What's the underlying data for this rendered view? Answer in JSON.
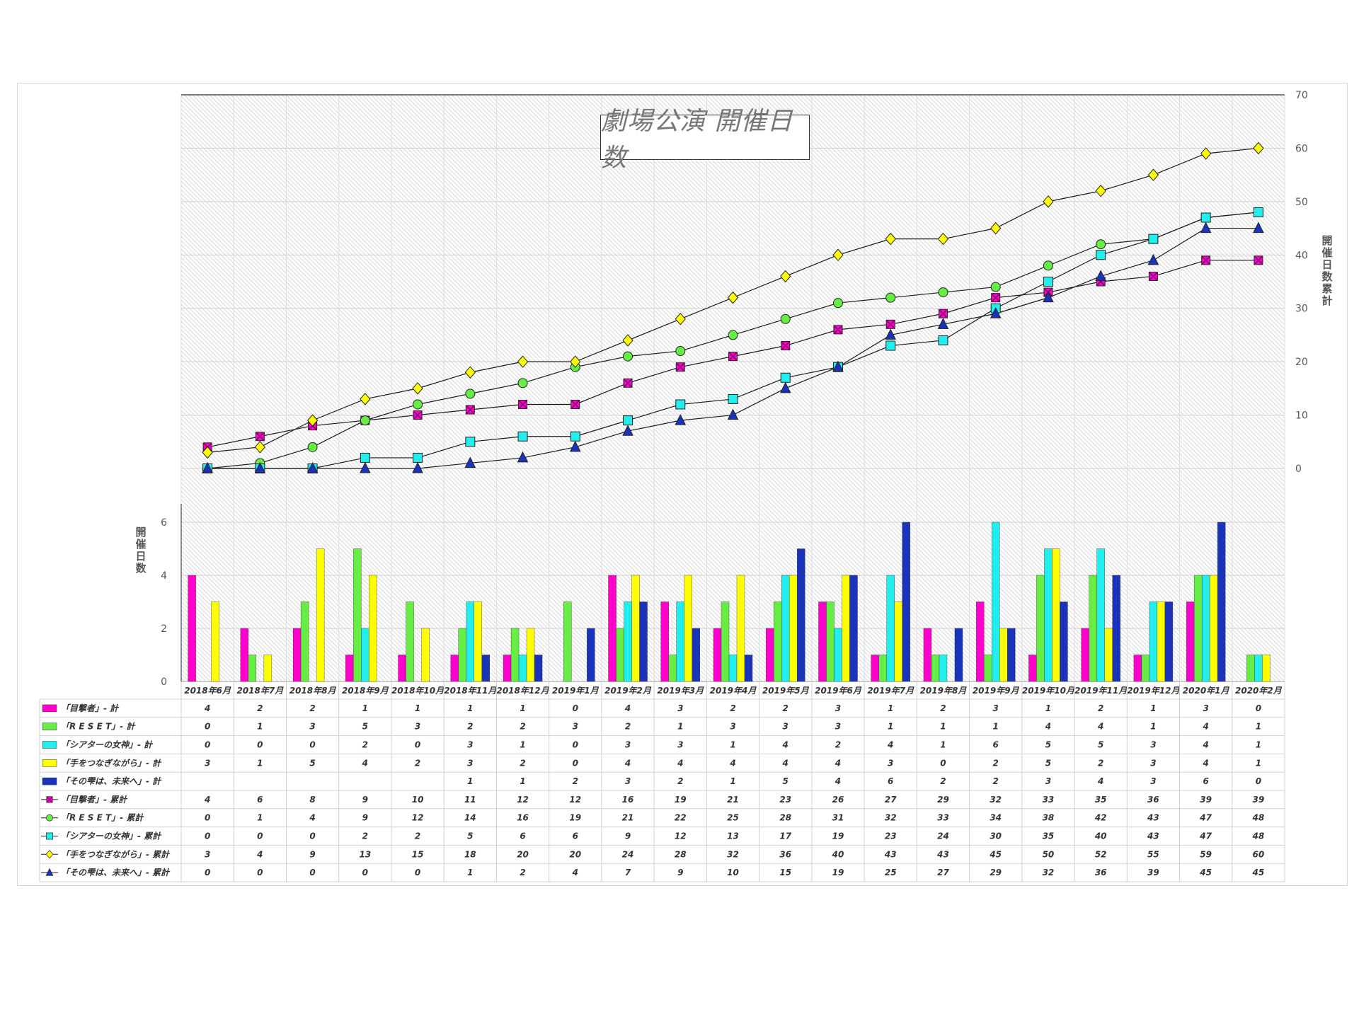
{
  "chart_data": {
    "type": "bar+line",
    "title": "劇場公演 開催日数",
    "ylabel_left": "開催日数",
    "ylabel_right": "開催日数 累計",
    "categories": [
      "2018年6月",
      "2018年7月",
      "2018年8月",
      "2018年9月",
      "2018年10月",
      "2018年11月",
      "2018年12月",
      "2019年1月",
      "2019年2月",
      "2019年3月",
      "2019年4月",
      "2019年5月",
      "2019年6月",
      "2019年7月",
      "2019年8月",
      "2019年9月",
      "2019年10月",
      "2019年11月",
      "2019年12月",
      "2020年1月",
      "2020年2月"
    ],
    "left_axis": {
      "ticks": [
        "0",
        "2",
        "4",
        "6"
      ],
      "range": [
        0,
        6
      ]
    },
    "right_axis": {
      "ticks": [
        "0",
        "10",
        "20",
        "30",
        "40",
        "50",
        "60",
        "70"
      ],
      "range": [
        0,
        70
      ]
    },
    "grid": true,
    "legend_placement": "data-table",
    "bar_series": [
      {
        "name": "「目撃者」- 計",
        "color": "#ff00cc",
        "values": [
          4,
          2,
          2,
          1,
          1,
          1,
          1,
          0,
          4,
          3,
          2,
          2,
          3,
          1,
          2,
          3,
          1,
          2,
          1,
          3,
          0
        ],
        "labels": [
          "4",
          "2",
          "2",
          "1",
          "1",
          "1",
          "1",
          "0",
          "4",
          "3",
          "2",
          "2",
          "3",
          "1",
          "2",
          "3",
          "1",
          "2",
          "1",
          "3",
          "0"
        ]
      },
      {
        "name": "「R E S E T」- 計",
        "color": "#66ee44",
        "values": [
          0,
          1,
          3,
          5,
          3,
          2,
          2,
          3,
          2,
          1,
          3,
          3,
          3,
          1,
          1,
          1,
          4,
          4,
          1,
          4,
          1
        ],
        "labels": [
          "0",
          "1",
          "3",
          "5",
          "3",
          "2",
          "2",
          "3",
          "2",
          "1",
          "3",
          "3",
          "3",
          "1",
          "1",
          "1",
          "4",
          "4",
          "1",
          "4",
          "1"
        ]
      },
      {
        "name": "「シアターの女神」- 計",
        "color": "#22eeee",
        "values": [
          0,
          0,
          0,
          2,
          0,
          3,
          1,
          0,
          3,
          3,
          1,
          4,
          2,
          4,
          1,
          6,
          5,
          5,
          3,
          4,
          1
        ],
        "labels": [
          "0",
          "0",
          "0",
          "2",
          "0",
          "3",
          "1",
          "0",
          "3",
          "3",
          "1",
          "4",
          "2",
          "4",
          "1",
          "6",
          "5",
          "5",
          "3",
          "4",
          "1"
        ]
      },
      {
        "name": "「手をつなぎながら」- 計",
        "color": "#ffff00",
        "values": [
          3,
          1,
          5,
          4,
          2,
          3,
          2,
          0,
          4,
          4,
          4,
          4,
          4,
          3,
          0,
          2,
          5,
          2,
          3,
          4,
          1
        ],
        "labels": [
          "3",
          "1",
          "5",
          "4",
          "2",
          "3",
          "2",
          "0",
          "4",
          "4",
          "4",
          "4",
          "4",
          "3",
          "0",
          "2",
          "5",
          "2",
          "3",
          "4",
          "1"
        ]
      },
      {
        "name": "「その雫は、未来へ」- 計",
        "color": "#1a33bb",
        "values": [
          0,
          0,
          0,
          0,
          0,
          1,
          1,
          2,
          3,
          2,
          1,
          5,
          4,
          6,
          2,
          2,
          3,
          4,
          3,
          6,
          0
        ],
        "labels": [
          "",
          "",
          "",
          "",
          "",
          "1",
          "1",
          "2",
          "3",
          "2",
          "1",
          "5",
          "4",
          "6",
          "2",
          "2",
          "3",
          "4",
          "3",
          "6",
          "0"
        ]
      }
    ],
    "line_series": [
      {
        "name": "「目撃者」- 累計",
        "color": "#ff00cc",
        "marker": "x-square",
        "values": [
          4,
          6,
          8,
          9,
          10,
          11,
          12,
          12,
          16,
          19,
          21,
          23,
          26,
          27,
          29,
          32,
          33,
          35,
          36,
          39,
          39
        ],
        "labels": [
          "4",
          "6",
          "8",
          "9",
          "10",
          "11",
          "12",
          "12",
          "16",
          "19",
          "21",
          "23",
          "26",
          "27",
          "29",
          "32",
          "33",
          "35",
          "36",
          "39",
          "39"
        ]
      },
      {
        "name": "「R E S E T」- 累計",
        "color": "#66ee44",
        "marker": "circle",
        "values": [
          0,
          1,
          4,
          9,
          12,
          14,
          16,
          19,
          21,
          22,
          25,
          28,
          31,
          32,
          33,
          34,
          38,
          42,
          43,
          47,
          48
        ],
        "labels": [
          "0",
          "1",
          "4",
          "9",
          "12",
          "14",
          "16",
          "19",
          "21",
          "22",
          "25",
          "28",
          "31",
          "32",
          "33",
          "34",
          "38",
          "42",
          "43",
          "47",
          "48"
        ]
      },
      {
        "name": "「シアターの女神」- 累計",
        "color": "#22eeee",
        "marker": "square",
        "values": [
          0,
          0,
          0,
          2,
          2,
          5,
          6,
          6,
          9,
          12,
          13,
          17,
          19,
          23,
          24,
          30,
          35,
          40,
          43,
          47,
          48
        ],
        "labels": [
          "0",
          "0",
          "0",
          "2",
          "2",
          "5",
          "6",
          "6",
          "9",
          "12",
          "13",
          "17",
          "19",
          "23",
          "24",
          "30",
          "35",
          "40",
          "43",
          "47",
          "48"
        ]
      },
      {
        "name": "「手をつなぎながら」- 累計",
        "color": "#ffff00",
        "marker": "diamond",
        "values": [
          3,
          4,
          9,
          13,
          15,
          18,
          20,
          20,
          24,
          28,
          32,
          36,
          40,
          43,
          43,
          45,
          50,
          52,
          55,
          59,
          60
        ],
        "labels": [
          "3",
          "4",
          "9",
          "13",
          "15",
          "18",
          "20",
          "20",
          "24",
          "28",
          "32",
          "36",
          "40",
          "43",
          "43",
          "45",
          "50",
          "52",
          "55",
          "59",
          "60"
        ]
      },
      {
        "name": "「その雫は、未来へ」- 累計",
        "color": "#1a33bb",
        "marker": "triangle",
        "values": [
          0,
          0,
          0,
          0,
          0,
          1,
          2,
          4,
          7,
          9,
          10,
          15,
          19,
          25,
          27,
          29,
          32,
          36,
          39,
          45,
          45
        ],
        "labels": [
          "0",
          "0",
          "0",
          "0",
          "0",
          "1",
          "2",
          "4",
          "7",
          "9",
          "10",
          "15",
          "19",
          "25",
          "27",
          "29",
          "32",
          "36",
          "39",
          "45",
          "45"
        ]
      }
    ]
  }
}
